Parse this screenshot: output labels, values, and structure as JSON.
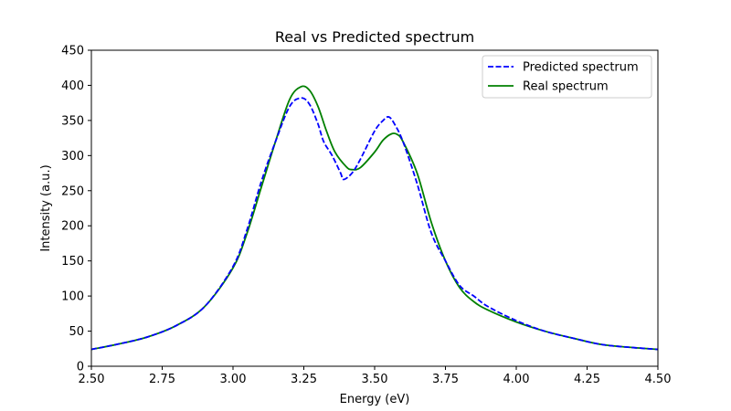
{
  "chart_data": {
    "type": "line",
    "title": "Real vs Predicted spectrum",
    "xlabel": "Energy (eV)",
    "ylabel": "Intensity (a.u.)",
    "xlim": [
      2.5,
      4.5
    ],
    "ylim": [
      0,
      450
    ],
    "xticks": [
      "2.50",
      "2.75",
      "3.00",
      "3.25",
      "3.50",
      "3.75",
      "4.00",
      "4.25",
      "4.50"
    ],
    "yticks": [
      "0",
      "50",
      "100",
      "150",
      "200",
      "250",
      "300",
      "350",
      "400",
      "450"
    ],
    "grid": false,
    "legend_position": "top-right",
    "series": [
      {
        "name": "Predicted spectrum",
        "style": "dashed",
        "color": "#0000ff",
        "x": [
          2.5,
          2.6,
          2.7,
          2.8,
          2.9,
          3.0,
          3.05,
          3.1,
          3.15,
          3.2,
          3.24,
          3.27,
          3.3,
          3.32,
          3.35,
          3.38,
          3.39,
          3.42,
          3.45,
          3.5,
          3.53,
          3.55,
          3.57,
          3.6,
          3.65,
          3.7,
          3.75,
          3.8,
          3.85,
          3.9,
          4.0,
          4.1,
          4.2,
          4.3,
          4.4,
          4.5
        ],
        "y": [
          24,
          32,
          42,
          58,
          85,
          142,
          195,
          263,
          320,
          370,
          382,
          373,
          345,
          320,
          300,
          275,
          266,
          275,
          295,
          335,
          350,
          355,
          345,
          320,
          260,
          190,
          150,
          115,
          100,
          85,
          65,
          50,
          40,
          31,
          27,
          24
        ]
      },
      {
        "name": "Real spectrum",
        "style": "solid",
        "color": "#008000",
        "x": [
          2.5,
          2.6,
          2.7,
          2.8,
          2.9,
          3.0,
          3.05,
          3.1,
          3.15,
          3.2,
          3.24,
          3.27,
          3.3,
          3.33,
          3.36,
          3.4,
          3.42,
          3.45,
          3.5,
          3.53,
          3.56,
          3.58,
          3.6,
          3.65,
          3.7,
          3.75,
          3.8,
          3.85,
          3.9,
          4.0,
          4.1,
          4.2,
          4.3,
          4.4,
          4.5
        ],
        "y": [
          24,
          32,
          42,
          58,
          85,
          140,
          190,
          255,
          320,
          380,
          398,
          393,
          370,
          335,
          305,
          284,
          280,
          283,
          305,
          322,
          331,
          330,
          320,
          275,
          205,
          150,
          112,
          92,
          80,
          63,
          50,
          40,
          31,
          27,
          24
        ]
      }
    ]
  }
}
